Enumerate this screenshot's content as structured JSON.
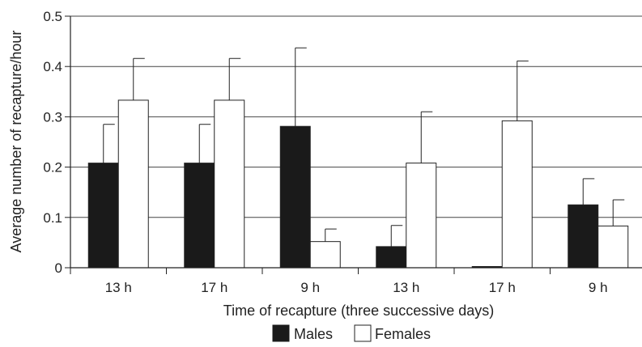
{
  "chart_data": {
    "type": "bar",
    "categories": [
      "13 h",
      "17 h",
      "9 h",
      "13 h",
      "17 h",
      "9 h"
    ],
    "series": [
      {
        "name": "Males",
        "color": "#1a1a1a",
        "values": [
          0.208,
          0.208,
          0.281,
          0.042,
          0.002,
          0.125
        ],
        "errors": [
          0.077,
          0.077,
          0.156,
          0.042,
          0.0,
          0.052
        ]
      },
      {
        "name": "Females",
        "color": "#ffffff",
        "values": [
          0.333,
          0.333,
          0.052,
          0.208,
          0.292,
          0.083
        ],
        "errors": [
          0.083,
          0.083,
          0.025,
          0.102,
          0.119,
          0.052
        ]
      }
    ],
    "title": "",
    "xlabel": "Time of recapture (three successive days)",
    "ylabel": "Average number of recapture/hour",
    "ylim": [
      0,
      0.5
    ],
    "yticks": [
      "0",
      "0.1",
      "0.2",
      "0.3",
      "0.4",
      "0.5"
    ],
    "grid": true,
    "legend_position": "bottom"
  }
}
